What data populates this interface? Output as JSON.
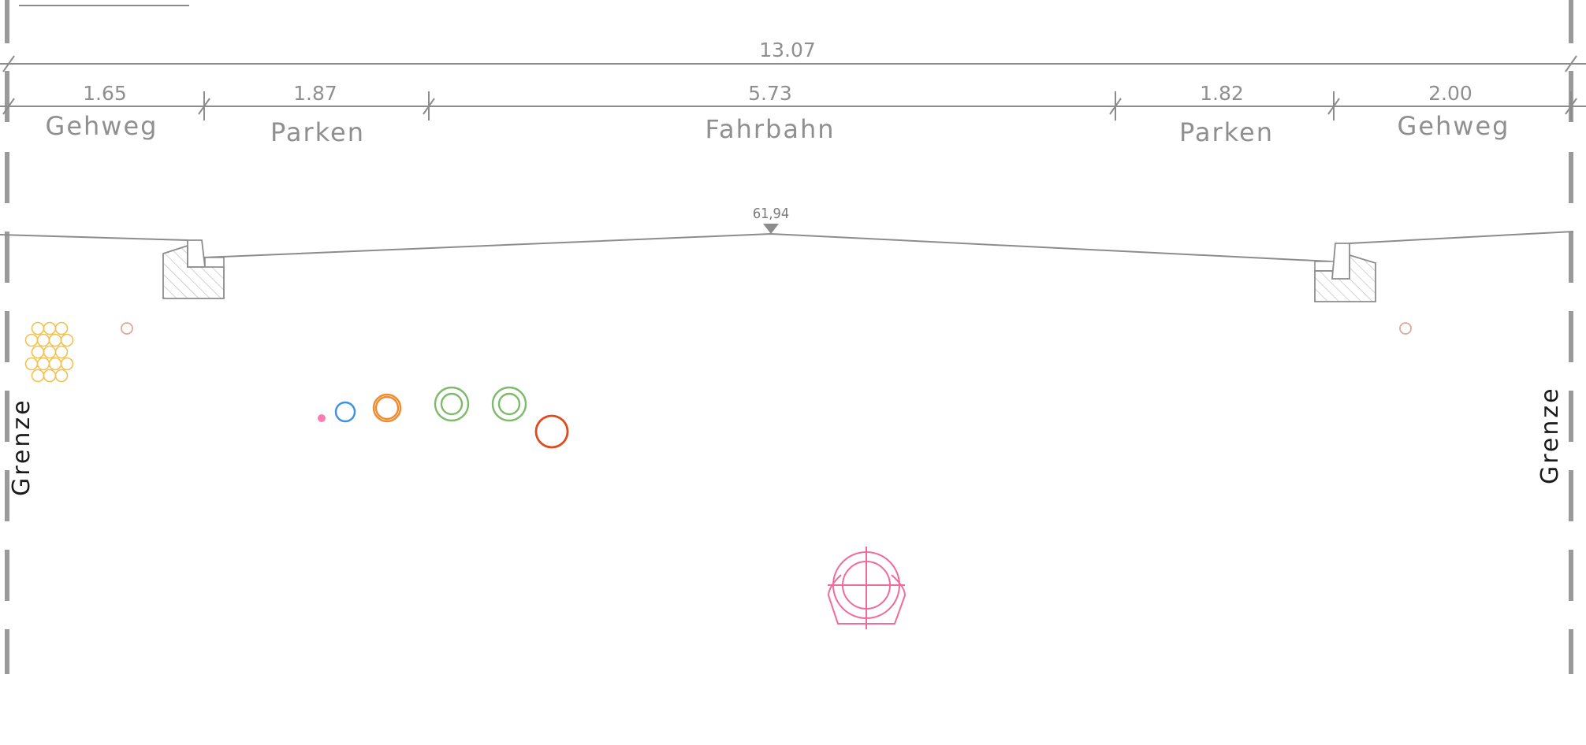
{
  "dimensions": {
    "total": "13.07",
    "segments": [
      "1.65",
      "1.87",
      "5.73",
      "1.82",
      "2.00"
    ]
  },
  "zones": [
    "Gehweg",
    "Parken",
    "Fahrbahn",
    "Parken",
    "Gehweg"
  ],
  "elevation": "61,94",
  "boundary": {
    "left": "Grenze",
    "right": "Grenze"
  },
  "colors": {
    "line": "#8c8c8c",
    "cable_bundle": "#f2c14e",
    "small_pipe": "#e0a79a",
    "dot_pink": "#ff7bb5",
    "water_blue": "#3d8fe8",
    "gas_orange": "#f08a2c",
    "green_pipe": "#7dbb6b",
    "red_pipe": "#e04a1f",
    "sewer_pink": "#f06a9c"
  }
}
